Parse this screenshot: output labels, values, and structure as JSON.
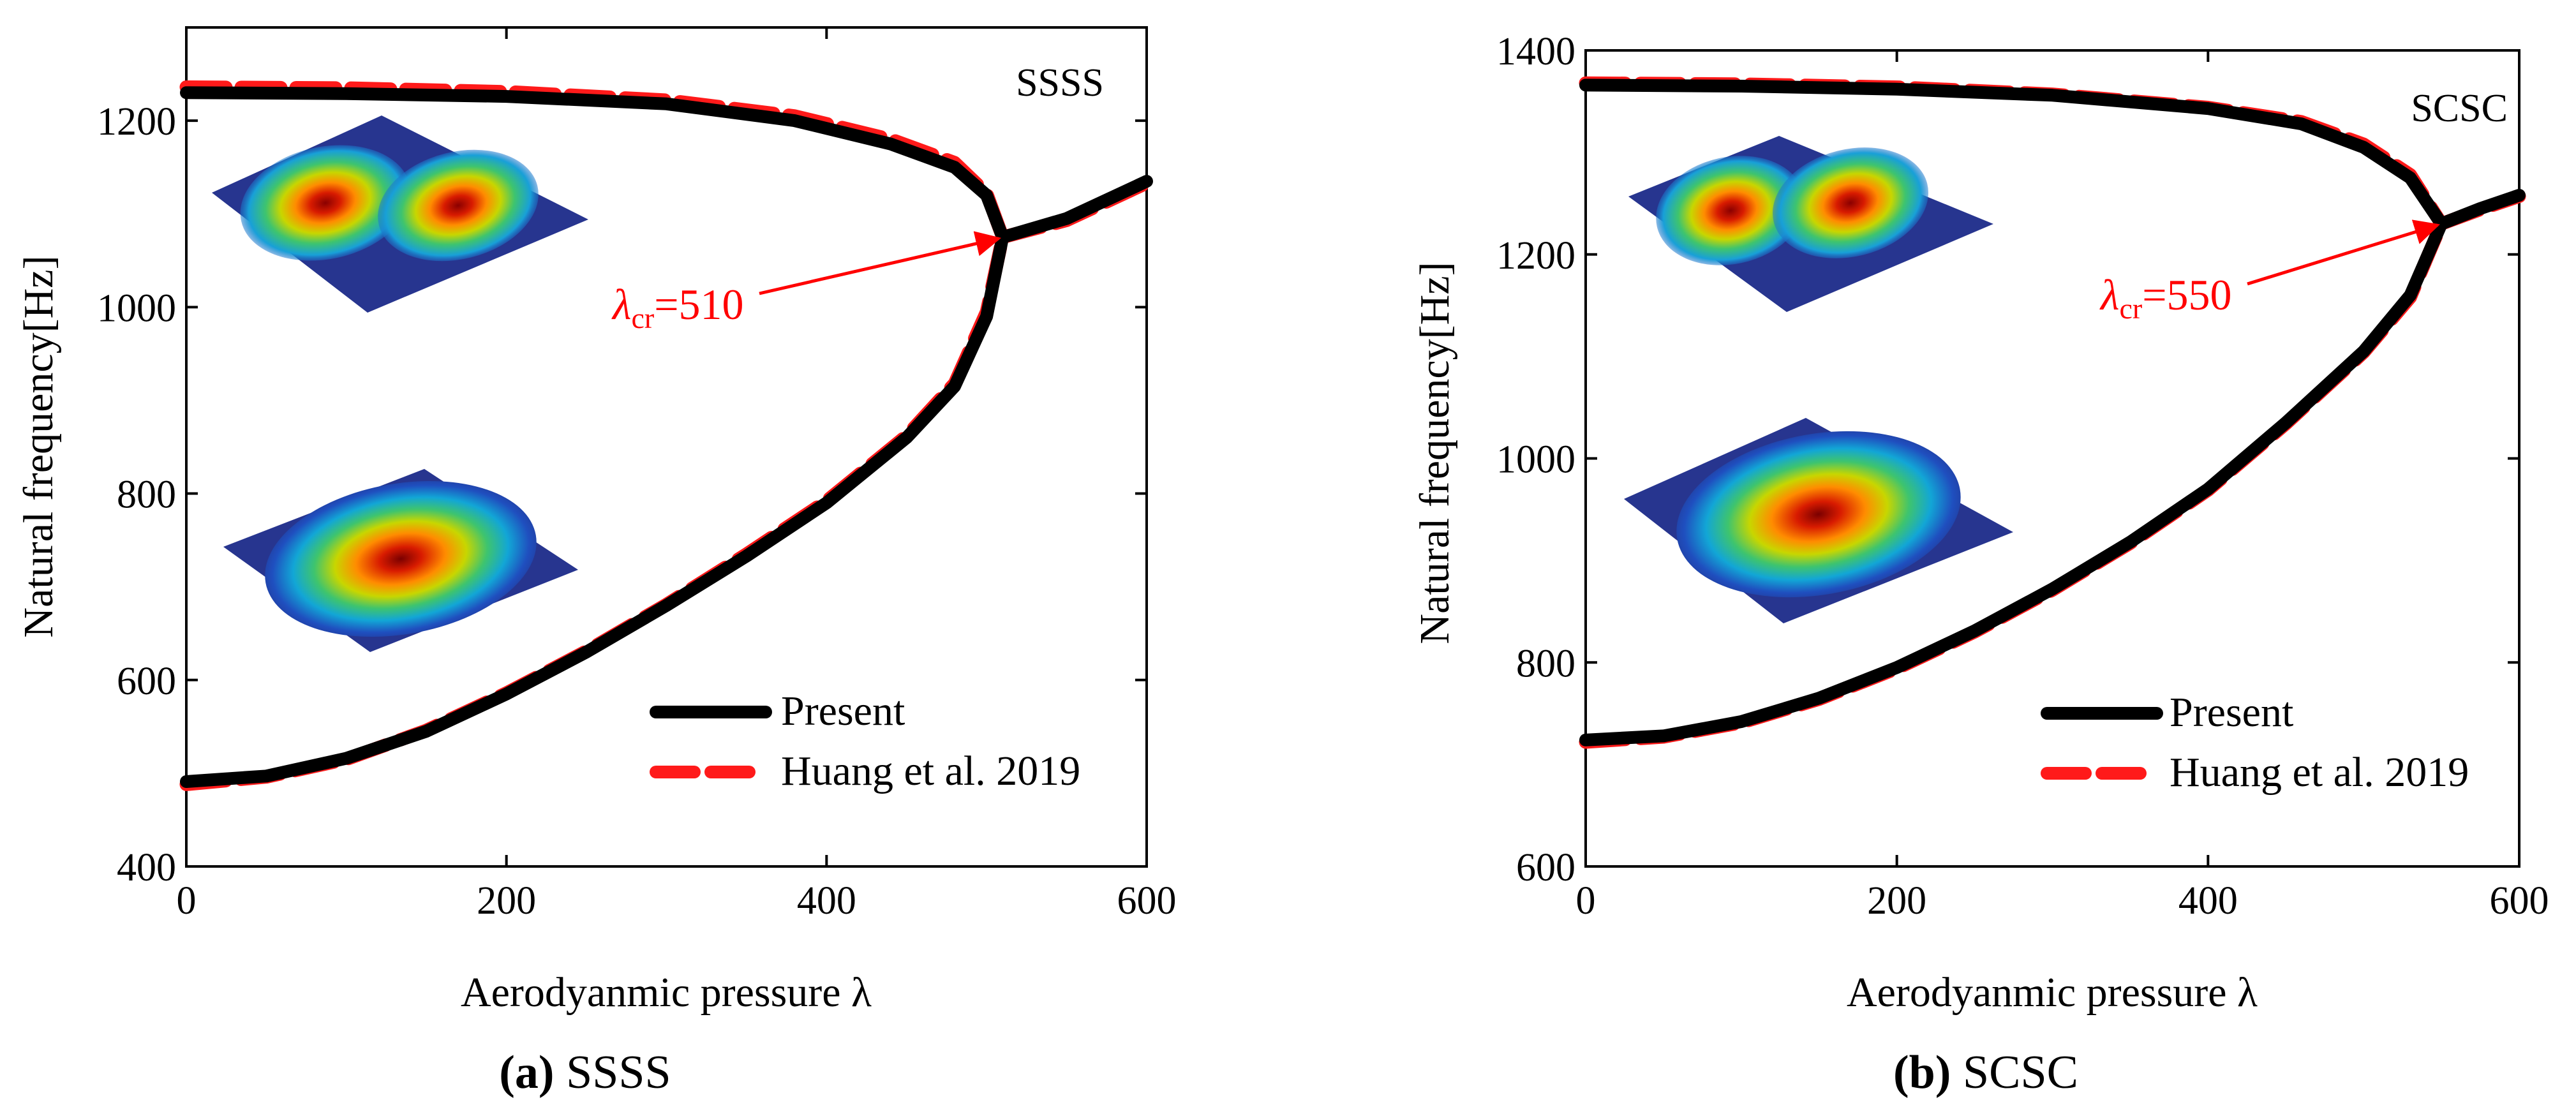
{
  "colors": {
    "present": "#000000",
    "reference": "#ff1a1a",
    "annotation": "#ff0000",
    "axis": "#000000"
  },
  "panels": [
    {
      "caption_letter": "(a)",
      "caption_rest": " SSSS",
      "tag": "SSSS",
      "legend": [
        "Present",
        "Huang et al. 2019"
      ],
      "annotation": {
        "lambda": "λ",
        "sub": "cr",
        "value": "=510"
      }
    },
    {
      "caption_letter": "(b)",
      "caption_rest": " SCSC",
      "tag": "SCSC",
      "legend": [
        "Present",
        "Huang et al. 2019"
      ],
      "annotation": {
        "lambda": "λ",
        "sub": "cr",
        "value": "=550"
      }
    }
  ],
  "chart_data": [
    {
      "type": "line",
      "title": "SSSS",
      "xlabel": "Aerodyanmic pressure λ",
      "ylabel": "Natural frequency[Hz]",
      "xlim": [
        0,
        600
      ],
      "ylim": [
        400,
        1300
      ],
      "xticks": [
        0,
        200,
        400,
        600
      ],
      "yticks": [
        400,
        600,
        800,
        1000,
        1200
      ],
      "grid": false,
      "legend_position": "bottom-right",
      "critical_lambda": 510,
      "critical_frequency": 1075,
      "series": [
        {
          "name": "Present",
          "lower": [
            [
              0,
              491
            ],
            [
              50,
              497
            ],
            [
              100,
              516
            ],
            [
              150,
              545
            ],
            [
              200,
              585
            ],
            [
              250,
              630
            ],
            [
              300,
              680
            ],
            [
              350,
              733
            ],
            [
              400,
              790
            ],
            [
              450,
              860
            ],
            [
              480,
              915
            ],
            [
              500,
              990
            ],
            [
              510,
              1075
            ]
          ],
          "upper": [
            [
              0,
              1230
            ],
            [
              100,
              1229
            ],
            [
              200,
              1226
            ],
            [
              300,
              1218
            ],
            [
              380,
              1200
            ],
            [
              440,
              1175
            ],
            [
              480,
              1150
            ],
            [
              500,
              1120
            ],
            [
              510,
              1075
            ]
          ],
          "merged": [
            [
              510,
              1075
            ],
            [
              550,
              1095
            ],
            [
              600,
              1135
            ]
          ]
        },
        {
          "name": "Huang et al. 2019",
          "lower": [
            [
              0,
              488
            ],
            [
              50,
              496
            ],
            [
              100,
              515
            ],
            [
              150,
              546
            ],
            [
              200,
              586
            ],
            [
              250,
              631
            ],
            [
              300,
              681
            ],
            [
              350,
              735
            ],
            [
              400,
              792
            ],
            [
              450,
              862
            ],
            [
              480,
              918
            ],
            [
              500,
              995
            ],
            [
              510,
              1075
            ]
          ],
          "upper": [
            [
              0,
              1236
            ],
            [
              100,
              1235
            ],
            [
              200,
              1231
            ],
            [
              300,
              1222
            ],
            [
              380,
              1205
            ],
            [
              440,
              1180
            ],
            [
              480,
              1155
            ],
            [
              500,
              1122
            ],
            [
              510,
              1075
            ]
          ],
          "merged": [
            [
              510,
              1075
            ],
            [
              550,
              1093
            ],
            [
              600,
              1133
            ]
          ]
        }
      ]
    },
    {
      "type": "line",
      "title": "SCSC",
      "xlabel": "Aerodyanmic pressure λ",
      "ylabel": "Natural frequency[Hz]",
      "xlim": [
        0,
        600
      ],
      "ylim": [
        600,
        1400
      ],
      "xticks": [
        0,
        200,
        400,
        600
      ],
      "yticks": [
        600,
        800,
        1000,
        1200,
        1400
      ],
      "grid": false,
      "legend_position": "bottom-right",
      "critical_lambda": 550,
      "critical_frequency": 1230,
      "series": [
        {
          "name": "Present",
          "lower": [
            [
              0,
              724
            ],
            [
              50,
              728
            ],
            [
              100,
              742
            ],
            [
              150,
              765
            ],
            [
              200,
              795
            ],
            [
              250,
              831
            ],
            [
              300,
              872
            ],
            [
              350,
              918
            ],
            [
              400,
              970
            ],
            [
              450,
              1035
            ],
            [
              500,
              1105
            ],
            [
              530,
              1160
            ],
            [
              550,
              1230
            ]
          ],
          "upper": [
            [
              0,
              1366
            ],
            [
              100,
              1365
            ],
            [
              200,
              1362
            ],
            [
              300,
              1356
            ],
            [
              400,
              1343
            ],
            [
              460,
              1328
            ],
            [
              500,
              1305
            ],
            [
              530,
              1275
            ],
            [
              550,
              1230
            ]
          ],
          "merged": [
            [
              550,
              1230
            ],
            [
              575,
              1245
            ],
            [
              600,
              1258
            ]
          ]
        },
        {
          "name": "Huang et al. 2019",
          "lower": [
            [
              0,
              722
            ],
            [
              50,
              727
            ],
            [
              100,
              741
            ],
            [
              150,
              764
            ],
            [
              200,
              794
            ],
            [
              250,
              830
            ],
            [
              300,
              871
            ],
            [
              350,
              917
            ],
            [
              400,
              969
            ],
            [
              450,
              1034
            ],
            [
              500,
              1104
            ],
            [
              530,
              1158
            ],
            [
              550,
              1230
            ]
          ],
          "upper": [
            [
              0,
              1368
            ],
            [
              100,
              1367
            ],
            [
              200,
              1364
            ],
            [
              300,
              1357
            ],
            [
              400,
              1344
            ],
            [
              460,
              1330
            ],
            [
              500,
              1308
            ],
            [
              530,
              1278
            ],
            [
              550,
              1230
            ]
          ],
          "merged": [
            [
              550,
              1230
            ],
            [
              575,
              1244
            ],
            [
              600,
              1257
            ]
          ]
        }
      ]
    }
  ]
}
